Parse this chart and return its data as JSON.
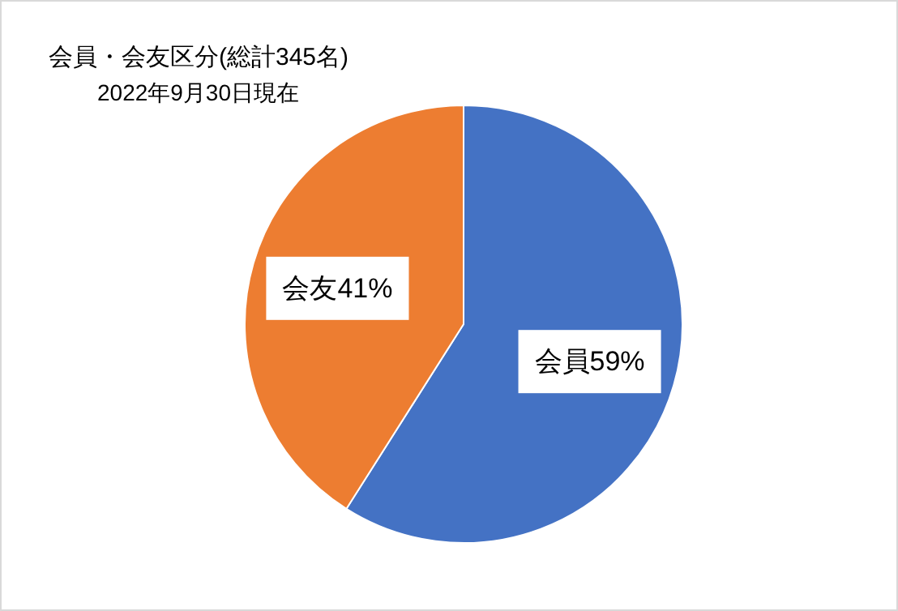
{
  "chart_data": {
    "type": "pie",
    "title": "会員・会友区分(総計345名)",
    "subtitle": "2022年9月30日現在",
    "categories": [
      "会員",
      "会友"
    ],
    "values": [
      59,
      41
    ],
    "colors": [
      "#4472c4",
      "#ed7d31"
    ],
    "value_labels": [
      "59%",
      "41%"
    ]
  }
}
